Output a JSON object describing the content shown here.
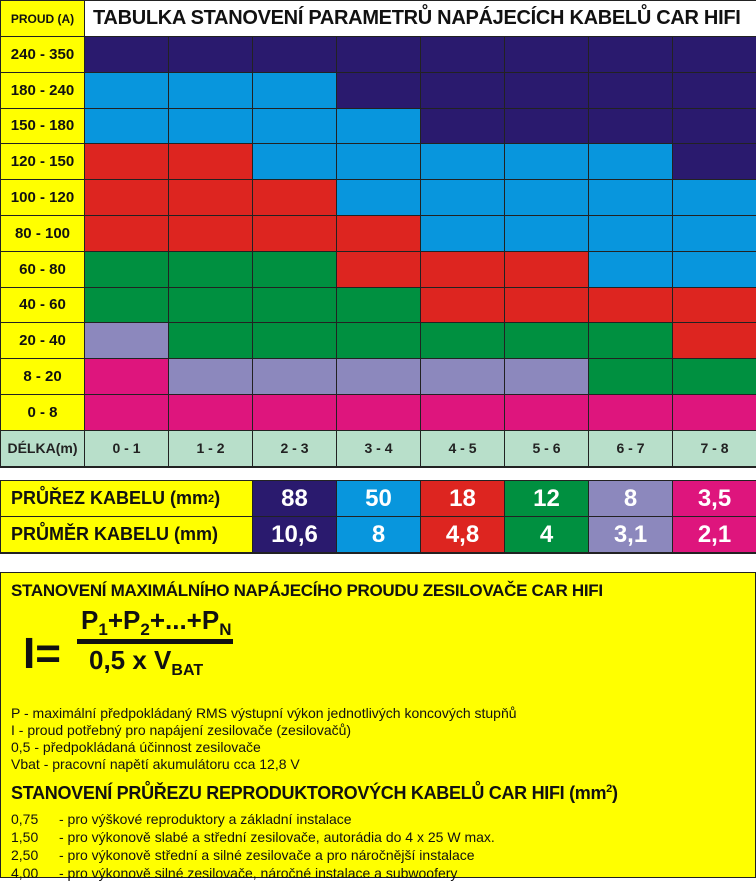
{
  "colors": {
    "N": "#2a1a6e",
    "B": "#0896dd",
    "R": "#dd2520",
    "G": "#009040",
    "L": "#8c88bd",
    "M": "#de157d"
  },
  "table": {
    "current_header": "PROUD (A)",
    "title": "TABULKA STANOVENÍ PARAMETRŮ NAPÁJECÍCH KABELŮ CAR HIFI",
    "rows": [
      {
        "label": "240 - 350",
        "cells": "NNNNNNNN"
      },
      {
        "label": "180 - 240",
        "cells": "BBBNNNNN"
      },
      {
        "label": "150 - 180",
        "cells": "BBBBNNNN"
      },
      {
        "label": "120 - 150",
        "cells": "RRBBBBBN"
      },
      {
        "label": "100 - 120",
        "cells": "RRRBBBBB"
      },
      {
        "label": "80 - 100",
        "cells": "RRRRBBBB"
      },
      {
        "label": "60 - 80",
        "cells": "GGGRRRBB"
      },
      {
        "label": "40 - 60",
        "cells": "GGGGRRRR"
      },
      {
        "label": "20 - 40",
        "cells": "LGGGGGGR"
      },
      {
        "label": "8 - 20",
        "cells": "MLLLLLGG"
      },
      {
        "label": "0 - 8",
        "cells": "MMMMMMMM"
      }
    ],
    "length_header": "DÉLKA",
    "length_unit": "(m)",
    "lengths": [
      "0 - 1",
      "1 - 2",
      "2 - 3",
      "3 - 4",
      "4 - 5",
      "5 - 6",
      "6 - 7",
      "7 - 8"
    ]
  },
  "cables": {
    "cross_label": "PRŮŘEZ KABELU (mm",
    "cross_sup": "2",
    "cross_close": ")",
    "diam_label": "PRŮMĚR KABELU (mm)",
    "codes": [
      "N",
      "B",
      "R",
      "G",
      "L",
      "M"
    ],
    "cross": [
      "88",
      "50",
      "18",
      "12",
      "8",
      "3,5"
    ],
    "diam": [
      "10,6",
      "8",
      "4,8",
      "4",
      "3,1",
      "2,1"
    ]
  },
  "current": {
    "title": "STANOVENÍ MAXIMÁLNÍHO NAPÁJECÍHO PROUDU ZESILOVAČE CAR HIFI",
    "formula": {
      "lhs": "I=",
      "p": "P",
      "s1": "1",
      "plus1": "+",
      "s2": "2",
      "mid": "+...+",
      "sn": "N",
      "den": "0,5 x V",
      "den_sub": "BAT"
    },
    "notes": [
      "P - maximální předpokládaný RMS výstupní výkon jednotlivých koncových stupňů",
      "I - proud potřebný pro napájení zesilovače (zesilovačů)",
      "0,5 - předpokládaná účinnost zesilovače",
      "Vbat - pracovní napětí akumulátoru cca 12,8 V"
    ]
  },
  "speaker": {
    "title": "STANOVENÍ PRŮŘEZU REPRODUKTOROVÝCH KABELŮ CAR HIFI (mm",
    "title_sup": "2",
    "title_close": ")",
    "items": [
      {
        "value": "0,75",
        "text": "- pro výškové reproduktory a základní instalace"
      },
      {
        "value": "1,50",
        "text": "- pro  výkonově slabé a střední zesilovače, autorádia do 4 x 25 W max."
      },
      {
        "value": "2,50",
        "text": "- pro výkonově střední a silné zesilovače a pro náročnější instalace"
      },
      {
        "value": "4,00",
        "text": "- pro výkonově silné zesilovače, náročné instalace a subwoofery"
      }
    ]
  }
}
